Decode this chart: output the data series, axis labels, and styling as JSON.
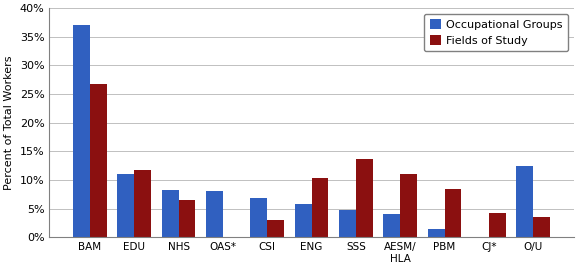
{
  "categories": [
    "BAM",
    "EDU",
    "NHS",
    "OAS*",
    "CSI",
    "ENG",
    "SSS",
    "AESM/\nHLA",
    "PBM",
    "CJ*",
    "O/U"
  ],
  "occupational_groups": [
    37.0,
    11.1,
    8.3,
    8.1,
    6.9,
    5.9,
    4.7,
    4.0,
    1.4,
    0.0,
    12.5
  ],
  "fields_of_study": [
    26.7,
    11.8,
    6.6,
    0.0,
    3.1,
    10.3,
    13.7,
    11.1,
    8.5,
    4.3,
    3.6
  ],
  "occ_color": "#3060C0",
  "fos_color": "#8B1010",
  "ylabel": "Percent of Total Workers",
  "ylim": [
    0,
    40
  ],
  "yticks": [
    0,
    5,
    10,
    15,
    20,
    25,
    30,
    35,
    40
  ],
  "ytick_labels": [
    "0%",
    "5%",
    "10%",
    "15%",
    "20%",
    "25%",
    "30%",
    "35%",
    "40%"
  ],
  "legend_occ": "Occupational Groups",
  "legend_fos": "Fields of Study",
  "bar_width": 0.38,
  "fig_bg": "#F0F0F0",
  "plot_bg": "#FFFFFF"
}
